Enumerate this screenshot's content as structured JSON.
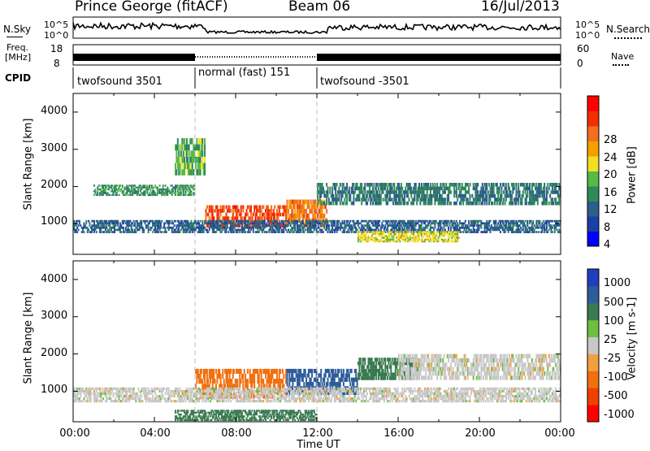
{
  "header": {
    "station": "Prince George (fitACF)",
    "beam": "Beam 06",
    "date": "16/Jul/2013"
  },
  "top_panels": {
    "noise_left": "N.Sky",
    "noise_right": "N.Search",
    "noise_ticks": [
      "10^5",
      "10^0"
    ],
    "freq_left_lines": [
      "Freq.",
      "[MHz]"
    ],
    "freq_ticks": [
      "18",
      "8"
    ],
    "nave_label": "Nave",
    "nave_ticks": [
      "60",
      "0"
    ],
    "cpid_label": "CPID"
  },
  "cpid_segments": [
    {
      "label": "twofsound 3501",
      "start_hr": 0,
      "end_hr": 6
    },
    {
      "label": "normal (fast) 151",
      "start_hr": 6,
      "end_hr": 12
    },
    {
      "label": "twofsound -3501",
      "start_hr": 12,
      "end_hr": 24
    }
  ],
  "colors": {
    "power_scale": [
      "#0000ff",
      "#1a3fa6",
      "#2e5e8a",
      "#2e8b57",
      "#58b848",
      "#f0e020",
      "#f5a000",
      "#f07020",
      "#f03000",
      "#ff0000"
    ],
    "velocity_scale": [
      "#1f3fbf",
      "#2e5d9a",
      "#3a7a50",
      "#6fbf3f",
      "#c8c8c8",
      "#f0a040",
      "#f07010",
      "#f04000",
      "#ff0000"
    ]
  },
  "chart_data": [
    {
      "type": "heatmap",
      "panel": "power",
      "ylabel": "Slant Range [km]",
      "xlabel": "Time UT",
      "x_ticks": [
        "00:00",
        "04:00",
        "08:00",
        "12:00",
        "16:00",
        "20:00",
        "00:00"
      ],
      "y_ticks": [
        "4000",
        "3000",
        "2000",
        "1000"
      ],
      "xlim_hours": [
        0,
        24
      ],
      "ylim_km": [
        180,
        4500
      ],
      "colorbar_label": "Power [dB]",
      "colorbar_ticks": [
        "28",
        "24",
        "20",
        "16",
        "12",
        "8",
        "4"
      ],
      "colorbar_range_db": [
        0,
        32
      ],
      "regions": [
        {
          "t0": 6.5,
          "t1": 10.5,
          "r0": 900,
          "r1": 1500,
          "value": 27
        },
        {
          "t0": 10.5,
          "t1": 12.5,
          "r0": 900,
          "r1": 1650,
          "value": 24
        },
        {
          "t0": 0,
          "t1": 24,
          "r0": 750,
          "r1": 1100,
          "value": 8
        },
        {
          "t0": 1,
          "t1": 6,
          "r0": 1750,
          "r1": 2050,
          "value": 12
        },
        {
          "t0": 12,
          "t1": 24,
          "r0": 1500,
          "r1": 2100,
          "value": 10
        },
        {
          "t0": 14,
          "t1": 19,
          "r0": 500,
          "r1": 800,
          "value": 18
        },
        {
          "t0": 5,
          "t1": 6.5,
          "r0": 2300,
          "r1": 3300,
          "value": 14
        }
      ]
    },
    {
      "type": "heatmap",
      "panel": "velocity",
      "ylabel": "Slant Range [km]",
      "xlabel": "Time UT",
      "x_ticks": [
        "00:00",
        "04:00",
        "08:00",
        "12:00",
        "16:00",
        "20:00",
        "00:00"
      ],
      "y_ticks": [
        "4000",
        "3000",
        "2000",
        "1000"
      ],
      "xlim_hours": [
        0,
        24
      ],
      "ylim_km": [
        180,
        4500
      ],
      "colorbar_label": "Velocity [m s-1]",
      "colorbar_ticks": [
        "1000",
        "500",
        "100",
        "25",
        "-25",
        "-100",
        "-500",
        "-1000"
      ],
      "regions": [
        {
          "t0": 6,
          "t1": 10.5,
          "r0": 800,
          "r1": 1600,
          "value": -300
        },
        {
          "t0": 10.5,
          "t1": 14,
          "r0": 900,
          "r1": 1600,
          "value": 400
        },
        {
          "t0": 14,
          "t1": 17,
          "r0": 1300,
          "r1": 1900,
          "value": 120
        },
        {
          "t0": 0,
          "t1": 24,
          "r0": 700,
          "r1": 1100,
          "value": 0
        },
        {
          "t0": 16,
          "t1": 24,
          "r0": 1300,
          "r1": 2000,
          "value": 0
        },
        {
          "t0": 5,
          "t1": 12,
          "r0": 200,
          "r1": 500,
          "value": 150
        }
      ]
    }
  ]
}
